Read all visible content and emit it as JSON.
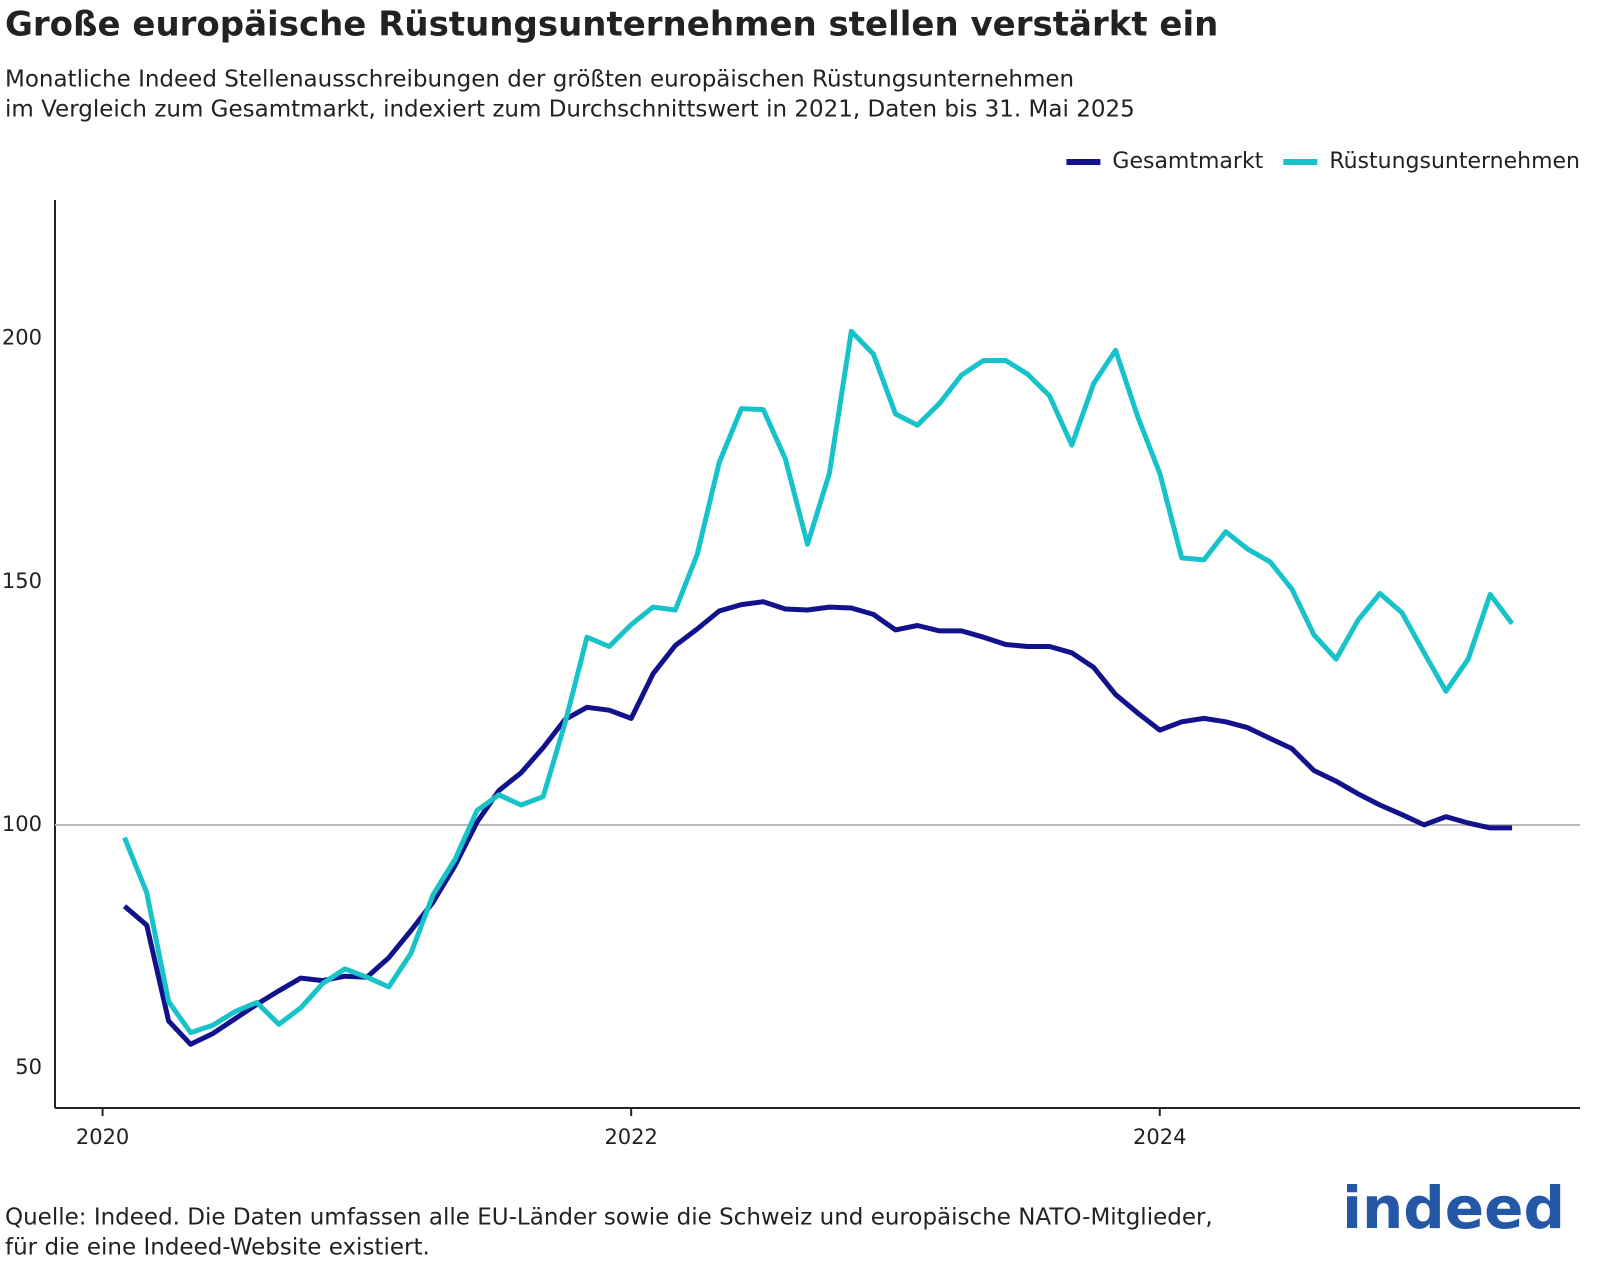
{
  "chart_data": {
    "type": "line",
    "title": "Große europäische Rüstungsunternehmen stellen verstärkt ein",
    "subtitle": [
      "Monatliche Indeed Stellenausschreibungen der größten europäischen Rüstungsunternehmen",
      "im Vergleich zum Gesamtmarkt, indexiert zum Durchschnittswert in 2021, Daten bis 31. Mai 2025"
    ],
    "source": [
      "Quelle: Indeed. Die Daten umfassen alle EU-Länder sowie die Schweiz und europäische NATO-Mitglieder,",
      "für die eine Indeed-Website existiert."
    ],
    "logo": "indeed",
    "x": [
      2020.083,
      2020.167,
      2020.25,
      2020.333,
      2020.417,
      2020.5,
      2020.583,
      2020.667,
      2020.75,
      2020.833,
      2020.917,
      2021.0,
      2021.083,
      2021.167,
      2021.25,
      2021.333,
      2021.417,
      2021.5,
      2021.583,
      2021.667,
      2021.75,
      2021.833,
      2021.917,
      2022.0,
      2022.083,
      2022.167,
      2022.25,
      2022.333,
      2022.417,
      2022.5,
      2022.583,
      2022.667,
      2022.75,
      2022.833,
      2022.917,
      2023.0,
      2023.083,
      2023.167,
      2023.25,
      2023.333,
      2023.417,
      2023.5,
      2023.583,
      2023.667,
      2023.75,
      2023.833,
      2023.917,
      2024.0,
      2024.083,
      2024.167,
      2024.25,
      2024.333,
      2024.417,
      2024.5,
      2024.583,
      2024.667,
      2024.75,
      2024.833,
      2024.917,
      2025.0,
      2025.083,
      2025.167,
      2025.25,
      2025.333
    ],
    "series": [
      {
        "name": "Gesamtmarkt",
        "color": "#12128c",
        "values": [
          83.3,
          79.4,
          59.7,
          54.9,
          57.1,
          60.1,
          63.1,
          65.9,
          68.5,
          68.0,
          68.9,
          68.7,
          72.7,
          78.3,
          84.1,
          91.6,
          100.6,
          107.1,
          110.7,
          115.9,
          121.7,
          124.2,
          123.6,
          121.9,
          131.1,
          136.9,
          140.3,
          144.0,
          145.3,
          145.9,
          144.4,
          144.2,
          144.8,
          144.6,
          143.3,
          140.1,
          141.0,
          139.9,
          139.9,
          138.6,
          137.1,
          136.7,
          136.7,
          135.4,
          132.4,
          126.8,
          123.0,
          119.5,
          121.2,
          121.9,
          121.2,
          120.0,
          117.8,
          115.7,
          111.2,
          109.0,
          106.4,
          104.1,
          102.1,
          100.0,
          101.7,
          100.4,
          99.4,
          99.4
        ]
      },
      {
        "name": "Rüstungsunternehmen",
        "color": "#17c3c9",
        "values": [
          97.4,
          86.1,
          63.7,
          57.3,
          58.8,
          61.6,
          63.5,
          59.0,
          62.4,
          67.4,
          70.4,
          68.7,
          66.7,
          73.6,
          85.6,
          92.9,
          103.0,
          106.2,
          104.1,
          105.8,
          121.0,
          138.6,
          136.7,
          141.2,
          144.8,
          144.2,
          155.6,
          174.5,
          185.6,
          185.4,
          175.3,
          157.7,
          172.3,
          201.5,
          196.8,
          184.5,
          182.2,
          186.7,
          192.5,
          195.5,
          195.5,
          192.7,
          188.2,
          178.1,
          190.8,
          197.6,
          183.9,
          172.3,
          154.9,
          154.5,
          160.3,
          156.7,
          154.1,
          148.5,
          139.1,
          134.1,
          142.1,
          147.6,
          143.6,
          135.4,
          127.5,
          134.1,
          147.4,
          141.4
        ]
      }
    ],
    "xlim": [
      2019.82,
      2025.59
    ],
    "xticks": [
      2020,
      2022,
      2024
    ],
    "ylim": [
      41.8,
      228.5
    ],
    "yticks": [
      50,
      100,
      150,
      200
    ],
    "reference_line": 100,
    "legend": "top-right"
  }
}
